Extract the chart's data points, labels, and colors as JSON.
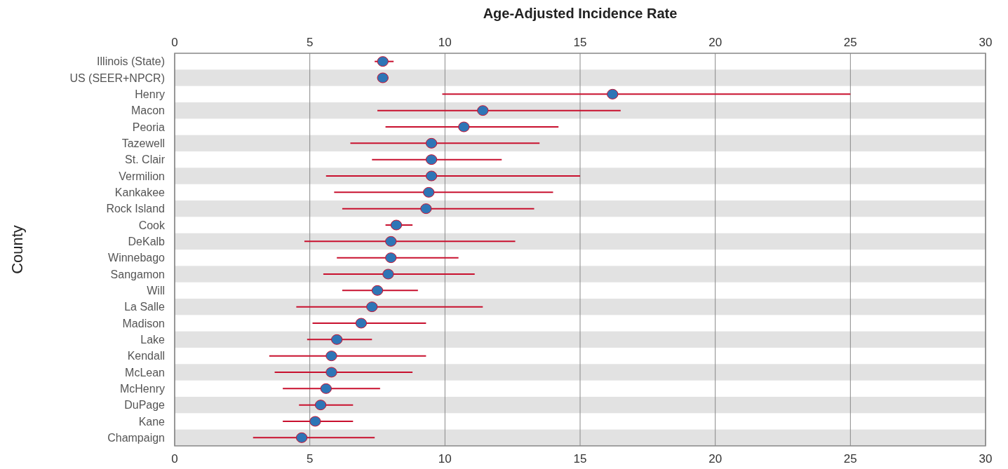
{
  "chart_data": {
    "type": "scatter",
    "orientation": "horizontal",
    "x2label": "Age-Adjusted Incidence Rate",
    "ylabel": "County",
    "categories": [
      "Illinois (State)",
      "US (SEER+NPCR)",
      "Henry",
      "Macon",
      "Peoria",
      "Tazewell",
      "St. Clair",
      "Vermilion",
      "Kankakee",
      "Rock Island",
      "Cook",
      "DeKalb",
      "Winnebago",
      "Sangamon",
      "Will",
      "La Salle",
      "Madison",
      "Lake",
      "Kendall",
      "McLean",
      "McHenry",
      "DuPage",
      "Kane",
      "Champaign"
    ],
    "series": [
      {
        "color": "#2e75b6",
        "values": [
          7.7,
          7.7,
          16.2,
          11.4,
          10.7,
          9.5,
          9.5,
          9.5,
          9.4,
          9.3,
          8.2,
          8.0,
          8.0,
          7.9,
          7.5,
          7.3,
          6.9,
          6.0,
          5.8,
          5.8,
          5.6,
          5.4,
          5.2,
          4.7
        ],
        "errors": [
          [
            7.4,
            8.1
          ],
          null,
          [
            9.9,
            25.0
          ],
          [
            7.5,
            16.5
          ],
          [
            7.8,
            14.2
          ],
          [
            6.5,
            13.5
          ],
          [
            7.3,
            12.1
          ],
          [
            5.6,
            15.0
          ],
          [
            5.9,
            14.0
          ],
          [
            6.2,
            13.3
          ],
          [
            7.8,
            8.8
          ],
          [
            4.8,
            12.6
          ],
          [
            6.0,
            10.5
          ],
          [
            5.5,
            11.1
          ],
          [
            6.2,
            9.0
          ],
          [
            4.5,
            11.4
          ],
          [
            5.1,
            9.3
          ],
          [
            4.9,
            7.3
          ],
          [
            3.5,
            9.3
          ],
          [
            3.7,
            8.8
          ],
          [
            4.0,
            7.6
          ],
          [
            4.6,
            6.6
          ],
          [
            4.0,
            6.6
          ],
          [
            2.9,
            7.4
          ]
        ]
      }
    ],
    "xlim": [
      0,
      30
    ],
    "xticks": [
      0,
      5,
      10,
      15,
      20,
      25,
      30
    ],
    "x2lim": [
      0,
      30
    ],
    "x2ticks": [
      0,
      5,
      10,
      15,
      20,
      25,
      30
    ],
    "grid": "x",
    "marker": "circle"
  }
}
